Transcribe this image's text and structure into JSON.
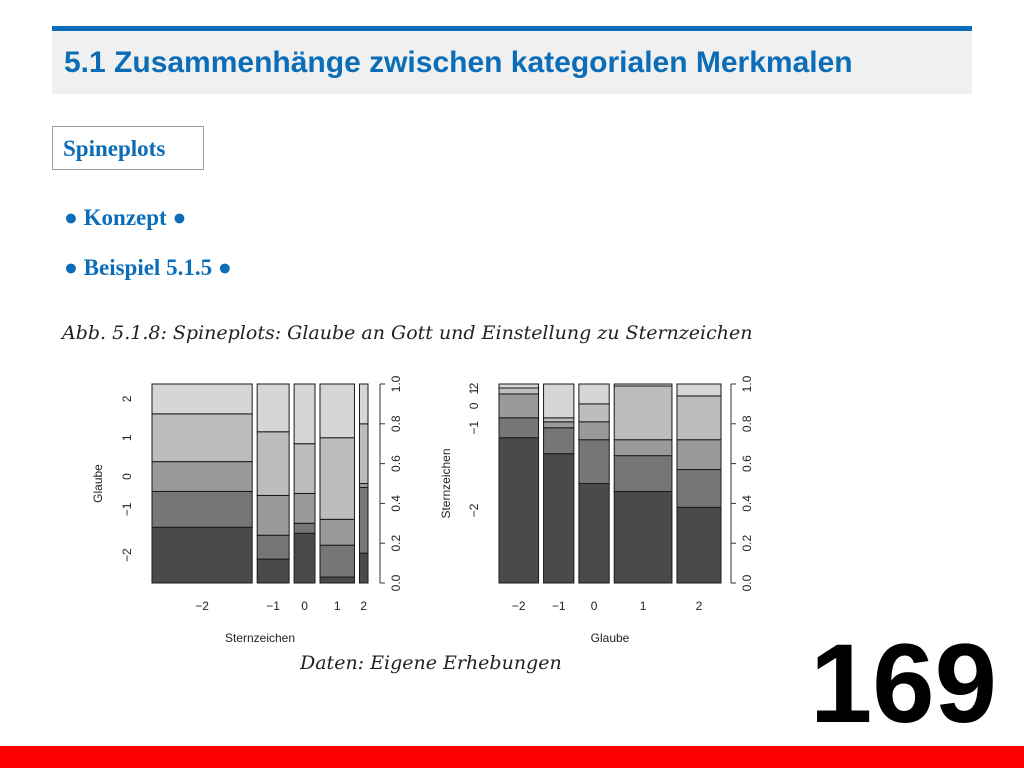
{
  "slide": {
    "title": "5.1 Zusammenhänge zwischen kategorialen Merkmalen",
    "section": "Spineplots",
    "bullets": [
      "● Konzept ●",
      "● Beispiel 5.1.5 ●"
    ],
    "caption": "Abb. 5.1.8: Spineplots: Glaube an Gott und Einstellung zu Sternzeichen",
    "source": "Daten: Eigene Erhebungen",
    "page_number": "169"
  },
  "colors": {
    "title": "#0b6db7",
    "footer_bar": "#ff0000",
    "category_shades": [
      "#4a4a4a",
      "#767676",
      "#9a9a9a",
      "#bdbdbd",
      "#d6d6d6"
    ]
  },
  "chart_data": [
    {
      "type": "spineplot",
      "xlabel": "Sternzeichen",
      "ylabel": "Glaube",
      "categories": [
        "−2",
        "−1",
        "0",
        "1",
        "2"
      ],
      "levels": [
        "−2",
        "−1",
        "0",
        "1",
        "2"
      ],
      "column_shares": [
        0.552,
        0.176,
        0.115,
        0.19,
        0.047
      ],
      "proportions": [
        [
          0.28,
          0.18,
          0.15,
          0.24,
          0.15
        ],
        [
          0.12,
          0.12,
          0.2,
          0.32,
          0.24
        ],
        [
          0.25,
          0.05,
          0.15,
          0.25,
          0.3
        ],
        [
          0.03,
          0.16,
          0.13,
          0.41,
          0.27
        ],
        [
          0.15,
          0.33,
          0.02,
          0.3,
          0.2
        ]
      ],
      "left_ticks": [
        "−2",
        "−1",
        "0",
        "1",
        "2"
      ],
      "right_ticks": [
        "0.0",
        "0.2",
        "0.4",
        "0.6",
        "0.8",
        "1.0"
      ],
      "ylim": [
        0,
        1
      ]
    },
    {
      "type": "spineplot",
      "xlabel": "Glaube",
      "ylabel": "Sternzeichen",
      "categories": [
        "−2",
        "−1",
        "0",
        "1",
        "2"
      ],
      "levels": [
        "−2",
        "−1",
        "0",
        "1",
        "2"
      ],
      "column_shares": [
        0.176,
        0.135,
        0.135,
        0.257,
        0.196
      ],
      "proportions": [
        [
          0.73,
          0.1,
          0.12,
          0.03,
          0.02
        ],
        [
          0.65,
          0.13,
          0.03,
          0.02,
          0.17
        ],
        [
          0.5,
          0.22,
          0.09,
          0.09,
          0.1
        ],
        [
          0.46,
          0.18,
          0.08,
          0.27,
          0.01
        ],
        [
          0.38,
          0.19,
          0.15,
          0.22,
          0.06
        ]
      ],
      "left_ticks": [
        "−2",
        "−1",
        "0",
        "1",
        "2"
      ],
      "right_ticks": [
        "0.0",
        "0.2",
        "0.4",
        "0.6",
        "0.8",
        "1.0"
      ],
      "ylim": [
        0,
        1
      ]
    }
  ]
}
